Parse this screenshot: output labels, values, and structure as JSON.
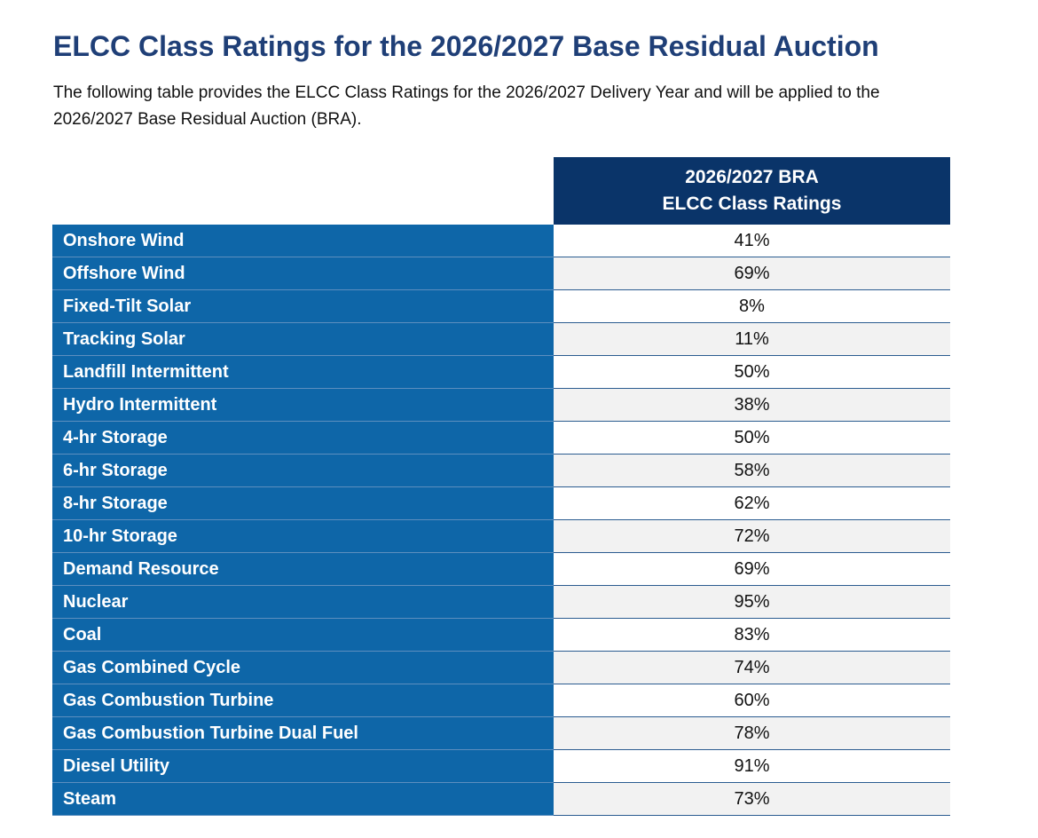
{
  "title": "ELCC Class Ratings for the 2026/2027 Base Residual Auction",
  "intro": "The following table provides the ELCC Class Ratings for the 2026/2027 Delivery Year and will be applied to the 2026/2027 Base Residual Auction (BRA).",
  "table": {
    "header_line1": "2026/2027 BRA",
    "header_line2": "ELCC Class Ratings",
    "rows": [
      {
        "name": "Onshore Wind",
        "value": "41%"
      },
      {
        "name": "Offshore Wind",
        "value": "69%"
      },
      {
        "name": "Fixed-Tilt Solar",
        "value": "8%"
      },
      {
        "name": "Tracking Solar",
        "value": "11%"
      },
      {
        "name": "Landfill Intermittent",
        "value": "50%"
      },
      {
        "name": "Hydro Intermittent",
        "value": "38%"
      },
      {
        "name": "4-hr Storage",
        "value": "50%"
      },
      {
        "name": "6-hr Storage",
        "value": "58%"
      },
      {
        "name": "8-hr Storage",
        "value": "62%"
      },
      {
        "name": "10-hr Storage",
        "value": "72%"
      },
      {
        "name": "Demand Resource",
        "value": "69%"
      },
      {
        "name": "Nuclear",
        "value": "95%"
      },
      {
        "name": "Coal",
        "value": "83%"
      },
      {
        "name": "Gas Combined Cycle",
        "value": "74%"
      },
      {
        "name": "Gas Combustion Turbine",
        "value": "60%"
      },
      {
        "name": "Gas Combustion Turbine Dual Fuel",
        "value": "78%"
      },
      {
        "name": "Diesel Utility",
        "value": "91%"
      },
      {
        "name": "Steam",
        "value": "73%"
      }
    ]
  },
  "colors": {
    "title": "#1f3f77",
    "header_bg": "#0a3469",
    "name_bg": "#0e66a8",
    "alt_row_bg": "#f2f2f2"
  }
}
